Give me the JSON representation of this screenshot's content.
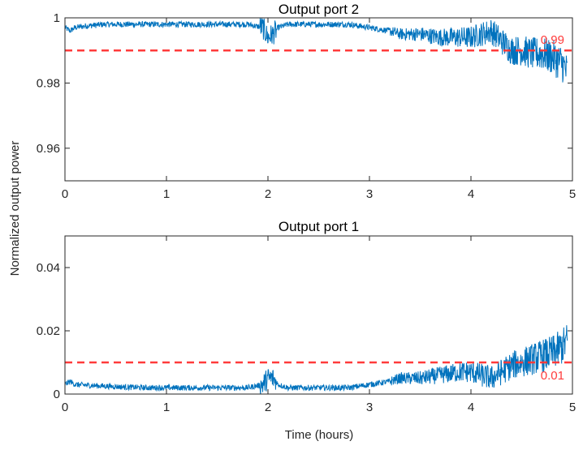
{
  "figure": {
    "xlabel": "Time (hours)",
    "ylabel": "Normalized output power"
  },
  "chart_data": [
    {
      "type": "line",
      "title": "Output port 2",
      "xlabel": "",
      "ylabel": "",
      "xlim": [
        0,
        5
      ],
      "ylim": [
        0.95,
        1.0
      ],
      "xticks": [
        "0",
        "1",
        "2",
        "3",
        "4",
        "5"
      ],
      "yticks": [
        "0.96",
        "0.98",
        "1"
      ],
      "ytick_values": [
        0.96,
        0.98,
        1.0
      ],
      "grid": false,
      "series": [
        {
          "color": "#0072BD",
          "x": [
            0,
            0.05,
            0.1,
            0.2,
            0.4,
            0.6,
            0.8,
            1.0,
            1.2,
            1.5,
            1.8,
            1.95,
            2.0,
            2.05,
            2.1,
            2.2,
            2.5,
            2.8,
            3.0,
            3.2,
            3.3,
            3.5,
            3.7,
            3.9,
            4.0,
            4.1,
            4.2,
            4.3,
            4.4,
            4.5,
            4.6,
            4.7,
            4.8,
            4.9,
            4.95
          ],
          "values": [
            0.997,
            0.996,
            0.997,
            0.9975,
            0.998,
            0.998,
            0.998,
            0.998,
            0.998,
            0.998,
            0.998,
            0.997,
            0.994,
            0.995,
            0.997,
            0.998,
            0.998,
            0.998,
            0.997,
            0.996,
            0.995,
            0.995,
            0.994,
            0.994,
            0.994,
            0.995,
            0.996,
            0.993,
            0.99,
            0.99,
            0.989,
            0.989,
            0.988,
            0.986,
            0.983
          ]
        }
      ],
      "reference_line": {
        "value": 0.99,
        "label": "0.99",
        "color": "#FF3B3B"
      }
    },
    {
      "type": "line",
      "title": "Output port 1",
      "xlabel": "Time (hours)",
      "ylabel": "",
      "xlim": [
        0,
        5
      ],
      "ylim": [
        0,
        0.05
      ],
      "xticks": [
        "0",
        "1",
        "2",
        "3",
        "4",
        "5"
      ],
      "yticks": [
        "0",
        "0.02",
        "0.04"
      ],
      "ytick_values": [
        0,
        0.02,
        0.04
      ],
      "grid": false,
      "series": [
        {
          "color": "#0072BD",
          "x": [
            0,
            0.05,
            0.1,
            0.2,
            0.4,
            0.6,
            0.8,
            1.0,
            1.2,
            1.5,
            1.8,
            1.95,
            2.0,
            2.05,
            2.1,
            2.2,
            2.5,
            2.8,
            3.0,
            3.2,
            3.3,
            3.5,
            3.7,
            3.9,
            4.0,
            4.1,
            4.2,
            4.3,
            4.4,
            4.5,
            4.6,
            4.7,
            4.8,
            4.9,
            4.95
          ],
          "values": [
            0.003,
            0.004,
            0.003,
            0.0028,
            0.0025,
            0.0022,
            0.002,
            0.002,
            0.002,
            0.002,
            0.002,
            0.003,
            0.005,
            0.005,
            0.003,
            0.002,
            0.002,
            0.002,
            0.003,
            0.004,
            0.005,
            0.005,
            0.006,
            0.007,
            0.007,
            0.006,
            0.005,
            0.007,
            0.009,
            0.01,
            0.011,
            0.012,
            0.013,
            0.015,
            0.017
          ]
        }
      ],
      "reference_line": {
        "value": 0.01,
        "label": "0.01",
        "color": "#FF3B3B"
      }
    }
  ]
}
